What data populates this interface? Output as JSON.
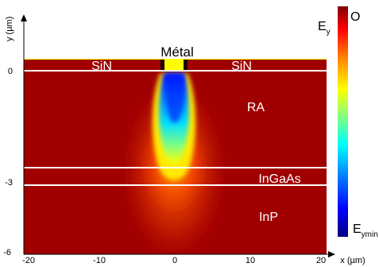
{
  "axes": {
    "y_axis_label": "y (µm)",
    "x_axis_label": "x (µm)",
    "x_ticks": [
      "-20",
      "-10",
      "0",
      "10",
      "20"
    ],
    "y_ticks": [
      "0",
      "-3",
      "-6"
    ]
  },
  "regions": {
    "metal": "Métal",
    "sin_left": "SiN",
    "sin_right": "SiN",
    "ra": "RA",
    "ingaas": "InGaAs",
    "inp": "InP"
  },
  "colorbar": {
    "top_label_main": "E",
    "top_label_sub": "y",
    "top_value": "O",
    "bottom_label_main": "E",
    "bottom_label_sub": "ymin",
    "colors": [
      "#000080",
      "#0000ff",
      "#00a0ff",
      "#00ffff",
      "#80ff80",
      "#ffff00",
      "#ff8000",
      "#ff0000",
      "#800000"
    ]
  },
  "colors": {
    "background_field": "#a00000",
    "metal": "#ffff00",
    "layer_lines": "#ffffff"
  }
}
